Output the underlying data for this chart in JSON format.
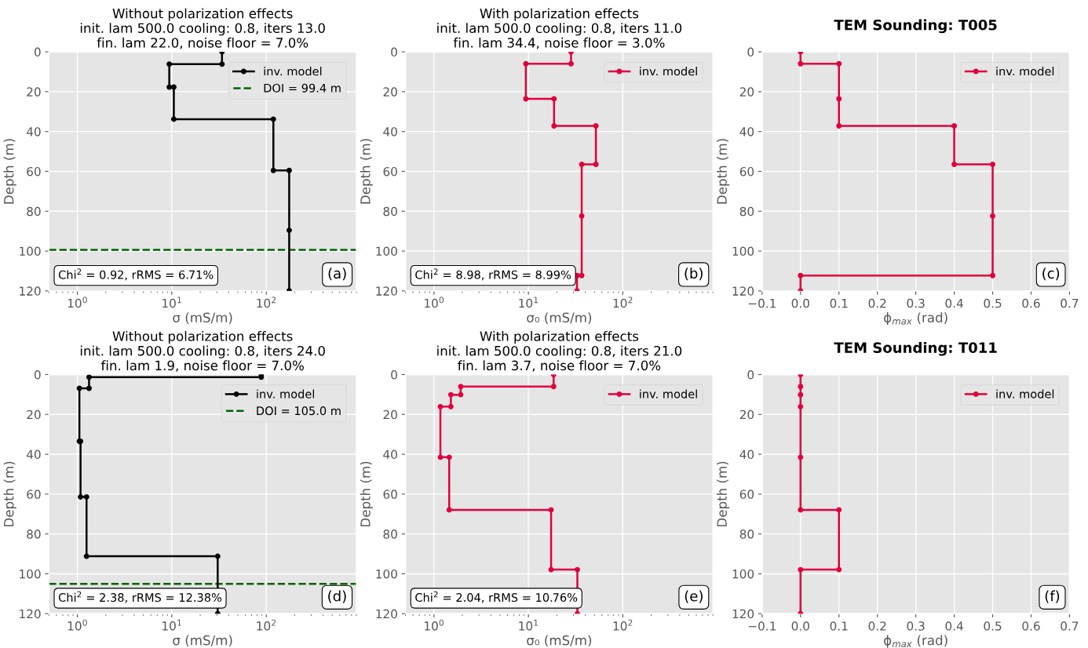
{
  "chart_data": [
    {
      "type": "line",
      "title": "Without polarization effects\ninit. lam 500.0 cooling: 0.8, iters 13.0\nfin. lam 22.0, noise floor = 7.0%",
      "xlabel": "σ (mS/m)",
      "ylabel": "Depth (m)",
      "log": "x",
      "xlim": [
        0.5,
        900
      ],
      "xticks": [
        {
          "value": 1,
          "label": "10$^{0}$"
        },
        {
          "value": 10,
          "label": "10$^{1}$"
        },
        {
          "value": 100,
          "label": "10$^{2}$"
        }
      ],
      "ylim": [
        120,
        0
      ],
      "yticks": [
        0,
        20,
        40,
        60,
        80,
        100,
        120
      ],
      "grid": true,
      "legend": "top right",
      "marker": "circle",
      "line_style": "solid",
      "series": [
        {
          "name": "inv. model",
          "color": "#000000",
          "x": [
            34,
            34,
            9.4,
            9.4,
            10.5,
            10.5,
            119,
            119,
            175,
            175,
            175
          ],
          "values": [
            0,
            6.2,
            6.2,
            17.7,
            17.7,
            33.8,
            33.8,
            59.5,
            59.5,
            89.6,
            120
          ]
        }
      ],
      "ref_lines": [
        {
          "axis": "y",
          "value": 99.4,
          "label": "DOI = 99.4 m",
          "color": "#006400",
          "line_style": "dashed"
        }
      ],
      "annotations": [
        "Chi$^{2}$ = 0.92, rRMS = 6.71%",
        "(a)"
      ]
    },
    {
      "type": "line",
      "title": "With polarization effects\ninit. lam 500.0 cooling: 0.8, iters 11.0\nfin. lam 34.4, noise floor = 3.0%",
      "xlabel": "σ₀ (mS/m)",
      "ylabel": "Depth (m)",
      "log": "x",
      "xlim": [
        0.5,
        900
      ],
      "xticks": [
        {
          "value": 1,
          "label": "10$^{0}$"
        },
        {
          "value": 10,
          "label": "10$^{1}$"
        },
        {
          "value": 100,
          "label": "10$^{2}$"
        }
      ],
      "ylim": [
        120,
        0
      ],
      "yticks": [
        0,
        20,
        40,
        60,
        80,
        100,
        120
      ],
      "grid": true,
      "legend": "top right",
      "marker": "circle",
      "line_style": "solid",
      "series": [
        {
          "name": "inv. model",
          "color": "#e0003c",
          "x": [
            28.3,
            28.3,
            9.4,
            9.4,
            18.7,
            18.7,
            51.9,
            51.9,
            36.7,
            36.7,
            36.7,
            32.7,
            32.7
          ],
          "values": [
            0,
            6.0,
            6.0,
            23.6,
            23.6,
            37.2,
            37.2,
            56.5,
            56.5,
            82.4,
            112.3,
            112.3,
            120
          ]
        }
      ],
      "annotations": [
        "Chi$^{2}$ = 8.98, rRMS = 8.99%",
        "(b)"
      ]
    },
    {
      "type": "line",
      "title": "TEM Sounding: T005",
      "xlabel": "ϕ$_{max}$ (rad)",
      "ylabel": "Depth (m)",
      "xlim": [
        -0.1,
        0.7
      ],
      "xticks": [
        {
          "value": -0.1,
          "label": "−0.1"
        },
        {
          "value": 0,
          "label": "0.0"
        },
        {
          "value": 0.1,
          "label": "0.1"
        },
        {
          "value": 0.2,
          "label": "0.2"
        },
        {
          "value": 0.3,
          "label": "0.3"
        },
        {
          "value": 0.4,
          "label": "0.4"
        },
        {
          "value": 0.5,
          "label": "0.5"
        },
        {
          "value": 0.6,
          "label": "0.6"
        },
        {
          "value": 0.7,
          "label": "0.7"
        }
      ],
      "ylim": [
        120,
        0
      ],
      "yticks": [
        0,
        20,
        40,
        60,
        80,
        100,
        120
      ],
      "grid": true,
      "legend": "top right",
      "marker": "circle",
      "line_style": "solid",
      "series": [
        {
          "name": "inv. model",
          "color": "#e0003c",
          "x": [
            0,
            0,
            0.1,
            0.1,
            0.1,
            0.4,
            0.4,
            0.5,
            0.5,
            0.5,
            0,
            0
          ],
          "values": [
            0,
            6.0,
            6.0,
            23.6,
            37.2,
            37.2,
            56.5,
            56.5,
            82.4,
            112.3,
            112.3,
            120
          ]
        }
      ],
      "annotations": [
        "(c)"
      ]
    },
    {
      "type": "line",
      "title": "Without polarization effects\ninit. lam 500.0 cooling: 0.8, iters 24.0\nfin. lam 1.9, noise floor = 7.0%",
      "xlabel": "σ (mS/m)",
      "ylabel": "Depth (m)",
      "log": "x",
      "xlim": [
        0.5,
        900
      ],
      "xticks": [
        {
          "value": 1,
          "label": "10$^{0}$"
        },
        {
          "value": 10,
          "label": "10$^{1}$"
        },
        {
          "value": 100,
          "label": "10$^{2}$"
        }
      ],
      "ylim": [
        120,
        0
      ],
      "yticks": [
        0,
        20,
        40,
        60,
        80,
        100,
        120
      ],
      "grid": true,
      "legend": "top right",
      "marker": "circle",
      "line_style": "solid",
      "series": [
        {
          "name": "inv. model",
          "color": "#000000",
          "x": [
            88.5,
            88.5,
            1.33,
            1.33,
            1.05,
            1.05,
            1.08,
            1.08,
            1.25,
            1.25,
            30.6,
            30.6
          ],
          "values": [
            0,
            1.3,
            1.3,
            6.9,
            6.9,
            33.5,
            33.5,
            61.4,
            61.4,
            91.2,
            91.2,
            120
          ]
        }
      ],
      "ref_lines": [
        {
          "axis": "y",
          "value": 105.0,
          "label": "DOI = 105.0 m",
          "color": "#006400",
          "line_style": "dashed"
        }
      ],
      "annotations": [
        "Chi$^{2}$ = 2.38, rRMS = 12.38%",
        "(d)"
      ]
    },
    {
      "type": "line",
      "title": "With polarization effects\ninit. lam 500.0 cooling: 0.8, iters 21.0\nfin. lam 3.7, noise floor = 7.0%",
      "xlabel": "σ₀ (mS/m)",
      "ylabel": "Depth (m)",
      "log": "x",
      "xlim": [
        0.5,
        900
      ],
      "xticks": [
        {
          "value": 1,
          "label": "10$^{0}$"
        },
        {
          "value": 10,
          "label": "10$^{1}$"
        },
        {
          "value": 100,
          "label": "10$^{2}$"
        }
      ],
      "ylim": [
        120,
        0
      ],
      "yticks": [
        0,
        20,
        40,
        60,
        80,
        100,
        120
      ],
      "grid": true,
      "legend": "top right",
      "marker": "circle",
      "line_style": "solid",
      "series": [
        {
          "name": "inv. model",
          "color": "#e0003c",
          "x": [
            18.5,
            18.5,
            1.92,
            1.92,
            1.51,
            1.51,
            1.17,
            1.17,
            1.45,
            1.45,
            17.4,
            17.4,
            33.0,
            33.0
          ],
          "values": [
            0,
            6.0,
            6.0,
            10.1,
            10.1,
            16.1,
            16.1,
            41.5,
            41.5,
            67.9,
            67.9,
            97.9,
            97.9,
            120
          ]
        }
      ],
      "annotations": [
        "Chi$^{2}$ = 2.04, rRMS = 10.76%",
        "(e)"
      ]
    },
    {
      "type": "line",
      "title": "TEM Sounding: T011",
      "xlabel": "ϕ$_{max}$ (rad)",
      "ylabel": "Depth (m)",
      "xlim": [
        -0.1,
        0.7
      ],
      "xticks": [
        {
          "value": -0.1,
          "label": "−0.1"
        },
        {
          "value": 0,
          "label": "0.0"
        },
        {
          "value": 0.1,
          "label": "0.1"
        },
        {
          "value": 0.2,
          "label": "0.2"
        },
        {
          "value": 0.3,
          "label": "0.3"
        },
        {
          "value": 0.4,
          "label": "0.4"
        },
        {
          "value": 0.5,
          "label": "0.5"
        },
        {
          "value": 0.6,
          "label": "0.6"
        },
        {
          "value": 0.7,
          "label": "0.7"
        }
      ],
      "ylim": [
        120,
        0
      ],
      "yticks": [
        0,
        20,
        40,
        60,
        80,
        100,
        120
      ],
      "grid": true,
      "legend": "top right",
      "marker": "circle",
      "line_style": "solid",
      "series": [
        {
          "name": "inv. model",
          "color": "#e0003c",
          "x": [
            0,
            0,
            0,
            0,
            0,
            0,
            0.1,
            0.1,
            0,
            0
          ],
          "values": [
            0,
            6.0,
            10.1,
            16.1,
            41.5,
            67.9,
            67.9,
            97.9,
            97.9,
            120
          ]
        }
      ],
      "annotations": [
        "(f)"
      ]
    }
  ]
}
